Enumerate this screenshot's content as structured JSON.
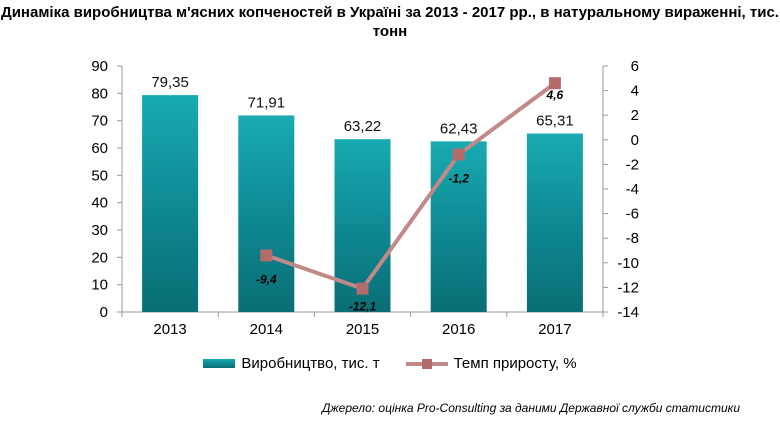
{
  "title": "Динаміка виробництва м'ясних копченостей в Україні за 2013 - 2017 рр., в натуральному вираженні, тис. тонн",
  "source": "Джерело: оцінка Pro-Consulting за даними Державної служби статистики",
  "colors": {
    "bar": "#0d8790",
    "line": "#c18a89",
    "marker": "#b36b6b"
  },
  "chart_data": {
    "type": "bar",
    "categories": [
      "2013",
      "2014",
      "2015",
      "2016",
      "2017"
    ],
    "series": [
      {
        "name": "Виробництво, тис. т",
        "type": "bar",
        "axis": "left",
        "values": [
          79.35,
          71.91,
          63.22,
          62.43,
          65.31
        ],
        "labels": [
          "79,35",
          "71,91",
          "63,22",
          "62,43",
          "65,31"
        ]
      },
      {
        "name": "Темп приросту, %",
        "type": "line",
        "axis": "right",
        "values": [
          null,
          -9.4,
          -12.1,
          -1.2,
          4.6
        ],
        "labels": [
          "",
          "-9,4",
          "-12,1",
          "-1,2",
          "4,6"
        ]
      }
    ],
    "y_left": {
      "min": 0,
      "max": 90,
      "step": 10,
      "ticks": [
        "0",
        "10",
        "20",
        "30",
        "40",
        "50",
        "60",
        "70",
        "80",
        "90"
      ]
    },
    "y_right": {
      "min": -14,
      "max": 6,
      "step": 2,
      "ticks": [
        "-14",
        "-12",
        "-10",
        "-8",
        "-6",
        "-4",
        "-2",
        "0",
        "2",
        "4",
        "6"
      ]
    },
    "grid": false,
    "legend_position": "bottom"
  }
}
